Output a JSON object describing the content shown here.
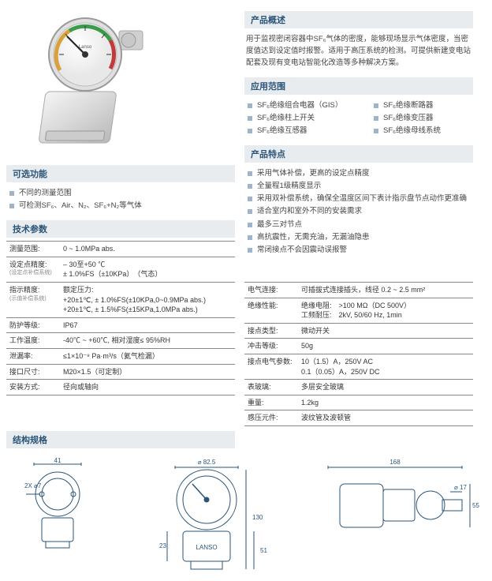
{
  "overview": {
    "title": "产品概述",
    "text": "用于监视密闭容器中SF₆气体的密度，能够现场显示气体密度，当密度值达到设定值时报警。适用于高压系统的检测。可提供新建变电站配套及现有变电站智能化改造等多种解决方案。"
  },
  "applications": {
    "title": "应用范围",
    "col1": [
      "SF₆绝缘组合电器（GIS）",
      "SF₆绝缘柱上开关",
      "SF₆绝缘互感器"
    ],
    "col2": [
      "SF₆绝缘断路器",
      "SF₆绝缘变压器",
      "SF₆绝缘母线系统"
    ]
  },
  "features": {
    "title": "产品特点",
    "items": [
      "采用气体补偿，更高的设定点精度",
      "全量程1级精度显示",
      "采用双补偿系统，确保全温度区间下表计指示盘节点动作更准确",
      "适合室内和室外不同的安装需求",
      "最多三对节点",
      "高抗震性，无需充油，无漏油隐患",
      "常闭接点不会因震动误报警"
    ]
  },
  "optional": {
    "title": "可选功能",
    "items": [
      "不同的测量范围",
      "可检测SF₆、Air、N₂、SF₆+N₂等气体"
    ]
  },
  "tech": {
    "title": "技术参数",
    "rows": [
      {
        "label": "测量范围:",
        "value": "0 ~ 1.0MPa abs."
      },
      {
        "label": "设定点精度:",
        "sub": "(设定点补偿系统)",
        "value": "– 30至+50 ℃\n± 1.0%FS（±10KPa）　（气态）"
      },
      {
        "label": "指示精度:",
        "sub": "(示值补偿系统)",
        "value": "额定压力:\n+20±1℃, ± 1.0%FS(±10KPa,0~0.9MPa abs.)\n+20±1℃, ± 1.5%FS(±15KPa,1.0MPa abs.)"
      },
      {
        "label": "防护等级:",
        "value": "IP67"
      },
      {
        "label": "工作温度:",
        "value": "-40℃ ~ +60℃, 相对湿度≤ 95%RH"
      },
      {
        "label": "泄漏率:",
        "value": "≤1×10⁻⁹ Pa·m³/s（氦气检漏）"
      },
      {
        "label": "接口尺寸:",
        "value": "M20×1.5（可定制）"
      },
      {
        "label": "安装方式:",
        "value": "径向或轴向"
      }
    ]
  },
  "tech2": {
    "rows": [
      {
        "label": "电气连接:",
        "value": "可插拔式连接插头，线径 0.2 ~ 2.5 mm²"
      },
      {
        "label": "绝缘性能:",
        "value": "绝缘电阻:　>100 MΩ（DC 500V）\n工频耐压:　2kV, 50/60 Hz, 1min"
      },
      {
        "label": "接点类型:",
        "value": "微动开关"
      },
      {
        "label": "冲击等级:",
        "value": "50g"
      },
      {
        "label": "接点电气参数:",
        "value": "10（1.5）A，250V AC\n0.1（0.05）A，250V DC"
      },
      {
        "label": "表玻璃:",
        "value": "多层安全玻璃"
      },
      {
        "label": "重量:",
        "value": "1.2kg"
      },
      {
        "label": "感压元件:",
        "value": "波纹管及波顿管"
      }
    ]
  },
  "structure": {
    "title": "结构规格"
  },
  "dims": {
    "d1": "41",
    "d2": "2X ⌀7",
    "d3": "⌀ 82.5",
    "d4": "23",
    "d5": "130",
    "d6": "51",
    "d7": "168",
    "d8": "55",
    "d9": "⌀ 17",
    "brand": "LANSO"
  },
  "colors": {
    "header_bg": "#e8ecef",
    "header_text": "#2a5578",
    "bullet": "#9fb5c7",
    "border": "#888888"
  }
}
